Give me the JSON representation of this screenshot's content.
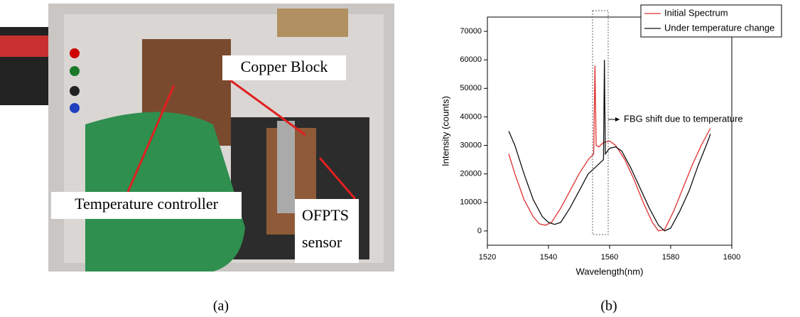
{
  "photo": {
    "labels": {
      "copper": "Copper Block",
      "controller": "Temperature controller",
      "sensor": [
        "OFPTS",
        "sensor"
      ]
    }
  },
  "captions": [
    "(a)",
    "(b)"
  ],
  "chart_data": {
    "type": "line",
    "xlabel": "Wavelength(nm)",
    "ylabel": "Intensity (counts)",
    "annotation": "FBG shift due to temperature",
    "xlim": [
      1520,
      1600
    ],
    "xticks": [
      1520,
      1540,
      1560,
      1580,
      1600
    ],
    "ylim": [
      -5000,
      75000
    ],
    "yticks": [
      0,
      10000,
      20000,
      30000,
      40000,
      50000,
      60000,
      70000
    ],
    "series": [
      {
        "name": "Initial Spectrum",
        "color": "#e03030",
        "x": [
          1527,
          1529,
          1532,
          1535,
          1537,
          1539,
          1541,
          1544,
          1547,
          1550,
          1553,
          1554.8,
          1555.2,
          1555.6,
          1556.5,
          1558,
          1560,
          1562,
          1565,
          1568,
          1571,
          1574,
          1576,
          1578,
          1581,
          1584,
          1587,
          1590,
          1593
        ],
        "values": [
          27000,
          20000,
          11000,
          5000,
          2500,
          2000,
          3000,
          8000,
          14000,
          20000,
          25000,
          27000,
          58000,
          30000,
          29500,
          31000,
          31500,
          30000,
          25000,
          18000,
          10000,
          3000,
          0,
          500,
          7000,
          15000,
          23000,
          30000,
          36000
        ]
      },
      {
        "name": "Under temperature change",
        "color": "#111111",
        "x": [
          1527,
          1529,
          1532,
          1535,
          1538,
          1540,
          1542,
          1544,
          1547,
          1550,
          1553,
          1556,
          1558,
          1558.3,
          1558.6,
          1560,
          1562,
          1564,
          1567,
          1570,
          1573,
          1576,
          1578,
          1580,
          1583,
          1586,
          1589,
          1592,
          1593
        ],
        "values": [
          35000,
          30000,
          20000,
          11000,
          5000,
          3000,
          2300,
          3000,
          8000,
          14000,
          20000,
          23000,
          25000,
          60000,
          27000,
          29000,
          29500,
          28000,
          22000,
          15000,
          8000,
          2000,
          0,
          1000,
          7000,
          14000,
          23000,
          31000,
          34000
        ]
      }
    ]
  }
}
